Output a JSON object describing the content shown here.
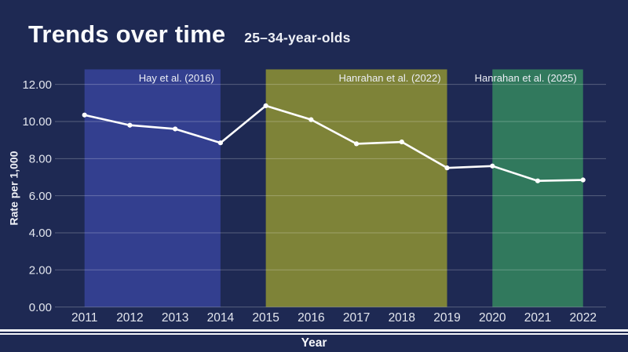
{
  "header": {
    "title": "Trends over time",
    "subtitle": "25–34-year-olds"
  },
  "colors": {
    "background": "#1e2953",
    "line": "#ffffff",
    "marker": "#ffffff",
    "gridline": "rgba(255,255,255,0.25)",
    "tick_text": "#e3e6ee",
    "band_label_text": "#eceef5",
    "band_blue": "#333f8f",
    "band_olive": "#7e8338",
    "band_green": "#31795d"
  },
  "chart_data": {
    "type": "line",
    "title": "Trends over time",
    "subtitle": "25–34-year-olds",
    "xlabel": "Year",
    "ylabel": "Rate per 1,000",
    "x": [
      2011,
      2012,
      2013,
      2014,
      2015,
      2016,
      2017,
      2018,
      2019,
      2020,
      2021,
      2022
    ],
    "series": [
      {
        "name": "Rate per 1,000",
        "values": [
          10.35,
          9.8,
          9.6,
          8.85,
          10.85,
          10.1,
          8.8,
          8.9,
          7.5,
          7.6,
          6.8,
          6.85
        ]
      }
    ],
    "ylim": [
      0,
      12.8
    ],
    "y_ticks": [
      0,
      2,
      4,
      6,
      8,
      10,
      12
    ],
    "y_tick_labels": [
      "0.00",
      "2.00",
      "4.00",
      "6.00",
      "8.00",
      "10.00",
      "12.00"
    ],
    "grid": true,
    "legend": "none",
    "bands": [
      {
        "label": "Hay et al. (2016)",
        "x_start": 2011,
        "x_end": 2014,
        "color_key": "band_blue"
      },
      {
        "label": "Hanrahan et al. (2022)",
        "x_start": 2015,
        "x_end": 2019,
        "color_key": "band_olive"
      },
      {
        "label": "Hanrahan et al. (2025)",
        "x_start": 2020,
        "x_end": 2022,
        "color_key": "band_green"
      }
    ]
  }
}
